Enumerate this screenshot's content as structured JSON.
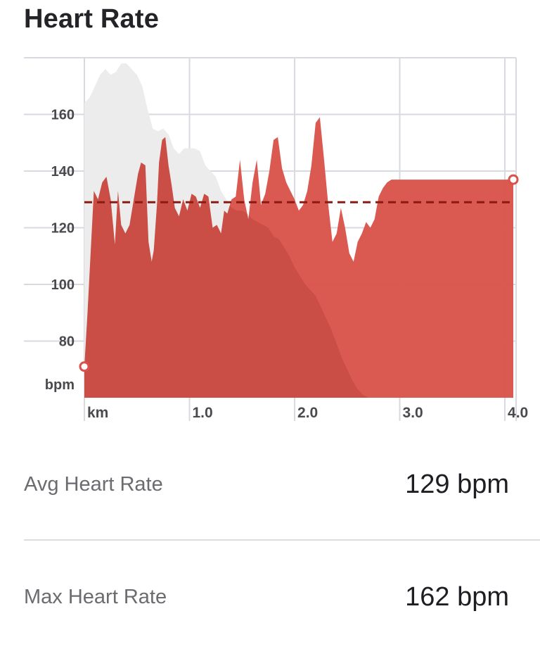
{
  "header": {
    "title": "Heart Rate"
  },
  "stats": [
    {
      "label": "Avg Heart Rate",
      "value": "129 bpm"
    },
    {
      "label": "Max Heart Rate",
      "value": "162 bpm"
    }
  ],
  "colors": {
    "hr_fill": "#d9534a",
    "elevation_fill": "#ececec",
    "avg_line": "#8b1a12",
    "grid": "#d9d9e0"
  },
  "chart_data": {
    "type": "area",
    "xlabel": "km",
    "ylabel": "bpm",
    "xlim": [
      0,
      4.1
    ],
    "ylim": [
      60,
      180
    ],
    "x_ticks": [
      1.0,
      2.0,
      3.0,
      4.0
    ],
    "x_tick_labels": [
      "1.0",
      "2.0",
      "3.0",
      "4.0"
    ],
    "y_ticks": [
      80,
      100,
      120,
      140,
      160
    ],
    "y_tick_labels": [
      "80",
      "100",
      "120",
      "140",
      "160"
    ],
    "grid": true,
    "average_line": 129,
    "series": [
      {
        "kind": "heart_rate",
        "x": [
          0.0,
          0.03,
          0.09,
          0.13,
          0.17,
          0.21,
          0.25,
          0.29,
          0.32,
          0.35,
          0.39,
          0.43,
          0.47,
          0.51,
          0.54,
          0.58,
          0.61,
          0.64,
          0.66,
          0.69,
          0.71,
          0.74,
          0.77,
          0.8,
          0.83,
          0.86,
          0.9,
          0.94,
          0.98,
          1.02,
          1.06,
          1.1,
          1.14,
          1.18,
          1.22,
          1.26,
          1.3,
          1.33,
          1.36,
          1.4,
          1.44,
          1.48,
          1.52,
          1.56,
          1.6,
          1.64,
          1.68,
          1.72,
          1.76,
          1.8,
          1.84,
          1.88,
          1.92,
          1.96,
          2.0,
          2.04,
          2.08,
          2.12,
          2.16,
          2.2,
          2.24,
          2.28,
          2.32,
          2.36,
          2.4,
          2.44,
          2.48,
          2.52,
          2.56,
          2.6,
          2.64,
          2.68,
          2.72,
          2.76,
          2.8,
          2.84,
          2.88,
          2.92,
          2.96,
          3.0,
          3.04,
          3.08,
          3.12,
          3.16,
          3.2,
          3.24,
          3.28,
          3.32,
          3.36,
          3.4,
          3.44,
          3.48,
          3.52,
          3.56,
          3.6,
          3.64,
          3.68,
          3.72,
          3.76,
          3.8,
          3.84,
          3.88,
          3.92,
          3.96,
          4.0,
          4.04,
          4.08
        ],
        "y": [
          71,
          90,
          133,
          130,
          136,
          138,
          130,
          114,
          133,
          121,
          118,
          121,
          130,
          139,
          143,
          142,
          115,
          108,
          112,
          128,
          143,
          151,
          152,
          142,
          135,
          127,
          124,
          130,
          126,
          132,
          131,
          127,
          132,
          131,
          120,
          121,
          118,
          126,
          125,
          130,
          131,
          144,
          130,
          123,
          136,
          144,
          128,
          132,
          140,
          151,
          152,
          141,
          136,
          133,
          130,
          126,
          128,
          133,
          142,
          157,
          159,
          144,
          128,
          115,
          118,
          127,
          120,
          111,
          108,
          115,
          118,
          122,
          120,
          123,
          131,
          134,
          136,
          137,
          137,
          137,
          137,
          137,
          137,
          137,
          137,
          137,
          137,
          137,
          137,
          137,
          137,
          137,
          137,
          137,
          137,
          137,
          137,
          137,
          137,
          137,
          137,
          137,
          137,
          137,
          137,
          137,
          137
        ]
      },
      {
        "kind": "elevation",
        "x": [
          0.0,
          0.05,
          0.1,
          0.15,
          0.2,
          0.25,
          0.3,
          0.35,
          0.4,
          0.45,
          0.5,
          0.55,
          0.6,
          0.65,
          0.7,
          0.75,
          0.8,
          0.85,
          0.9,
          0.95,
          1.0,
          1.05,
          1.1,
          1.15,
          1.2,
          1.25,
          1.3,
          1.35,
          1.4,
          1.45,
          1.5,
          1.55,
          1.6,
          1.65,
          1.7,
          1.75,
          1.8,
          1.85,
          1.9,
          1.95,
          2.0,
          2.05,
          2.1,
          2.15,
          2.2,
          2.25,
          2.3,
          2.35,
          2.4,
          2.45,
          2.5,
          2.55,
          2.6,
          2.65,
          2.7,
          2.75,
          2.8,
          2.85,
          2.9,
          2.95,
          3.0,
          3.05,
          3.1,
          3.15,
          3.2,
          3.25,
          3.3,
          3.35,
          3.4,
          3.45,
          3.5,
          3.55,
          3.6,
          3.65,
          3.7,
          3.75,
          3.8,
          3.85,
          3.9,
          3.95,
          4.0,
          4.05,
          4.1
        ],
        "y": [
          164,
          166,
          170,
          174,
          176,
          174,
          175,
          178,
          178,
          176,
          174,
          170,
          162,
          155,
          154,
          155,
          153,
          148,
          146,
          148,
          148,
          148,
          147,
          142,
          140,
          138,
          133,
          130,
          127,
          126,
          126,
          125,
          123,
          122,
          121,
          120,
          117,
          116,
          113,
          110,
          106,
          103,
          100,
          98,
          96,
          92,
          88,
          84,
          79,
          74,
          70,
          66,
          63,
          61,
          60,
          60,
          60,
          60,
          60,
          60,
          60,
          60,
          60,
          60,
          60,
          60,
          60,
          60,
          60,
          60,
          60,
          60,
          60,
          60,
          60,
          60,
          60,
          60,
          60,
          60,
          60,
          60,
          60
        ]
      }
    ]
  }
}
